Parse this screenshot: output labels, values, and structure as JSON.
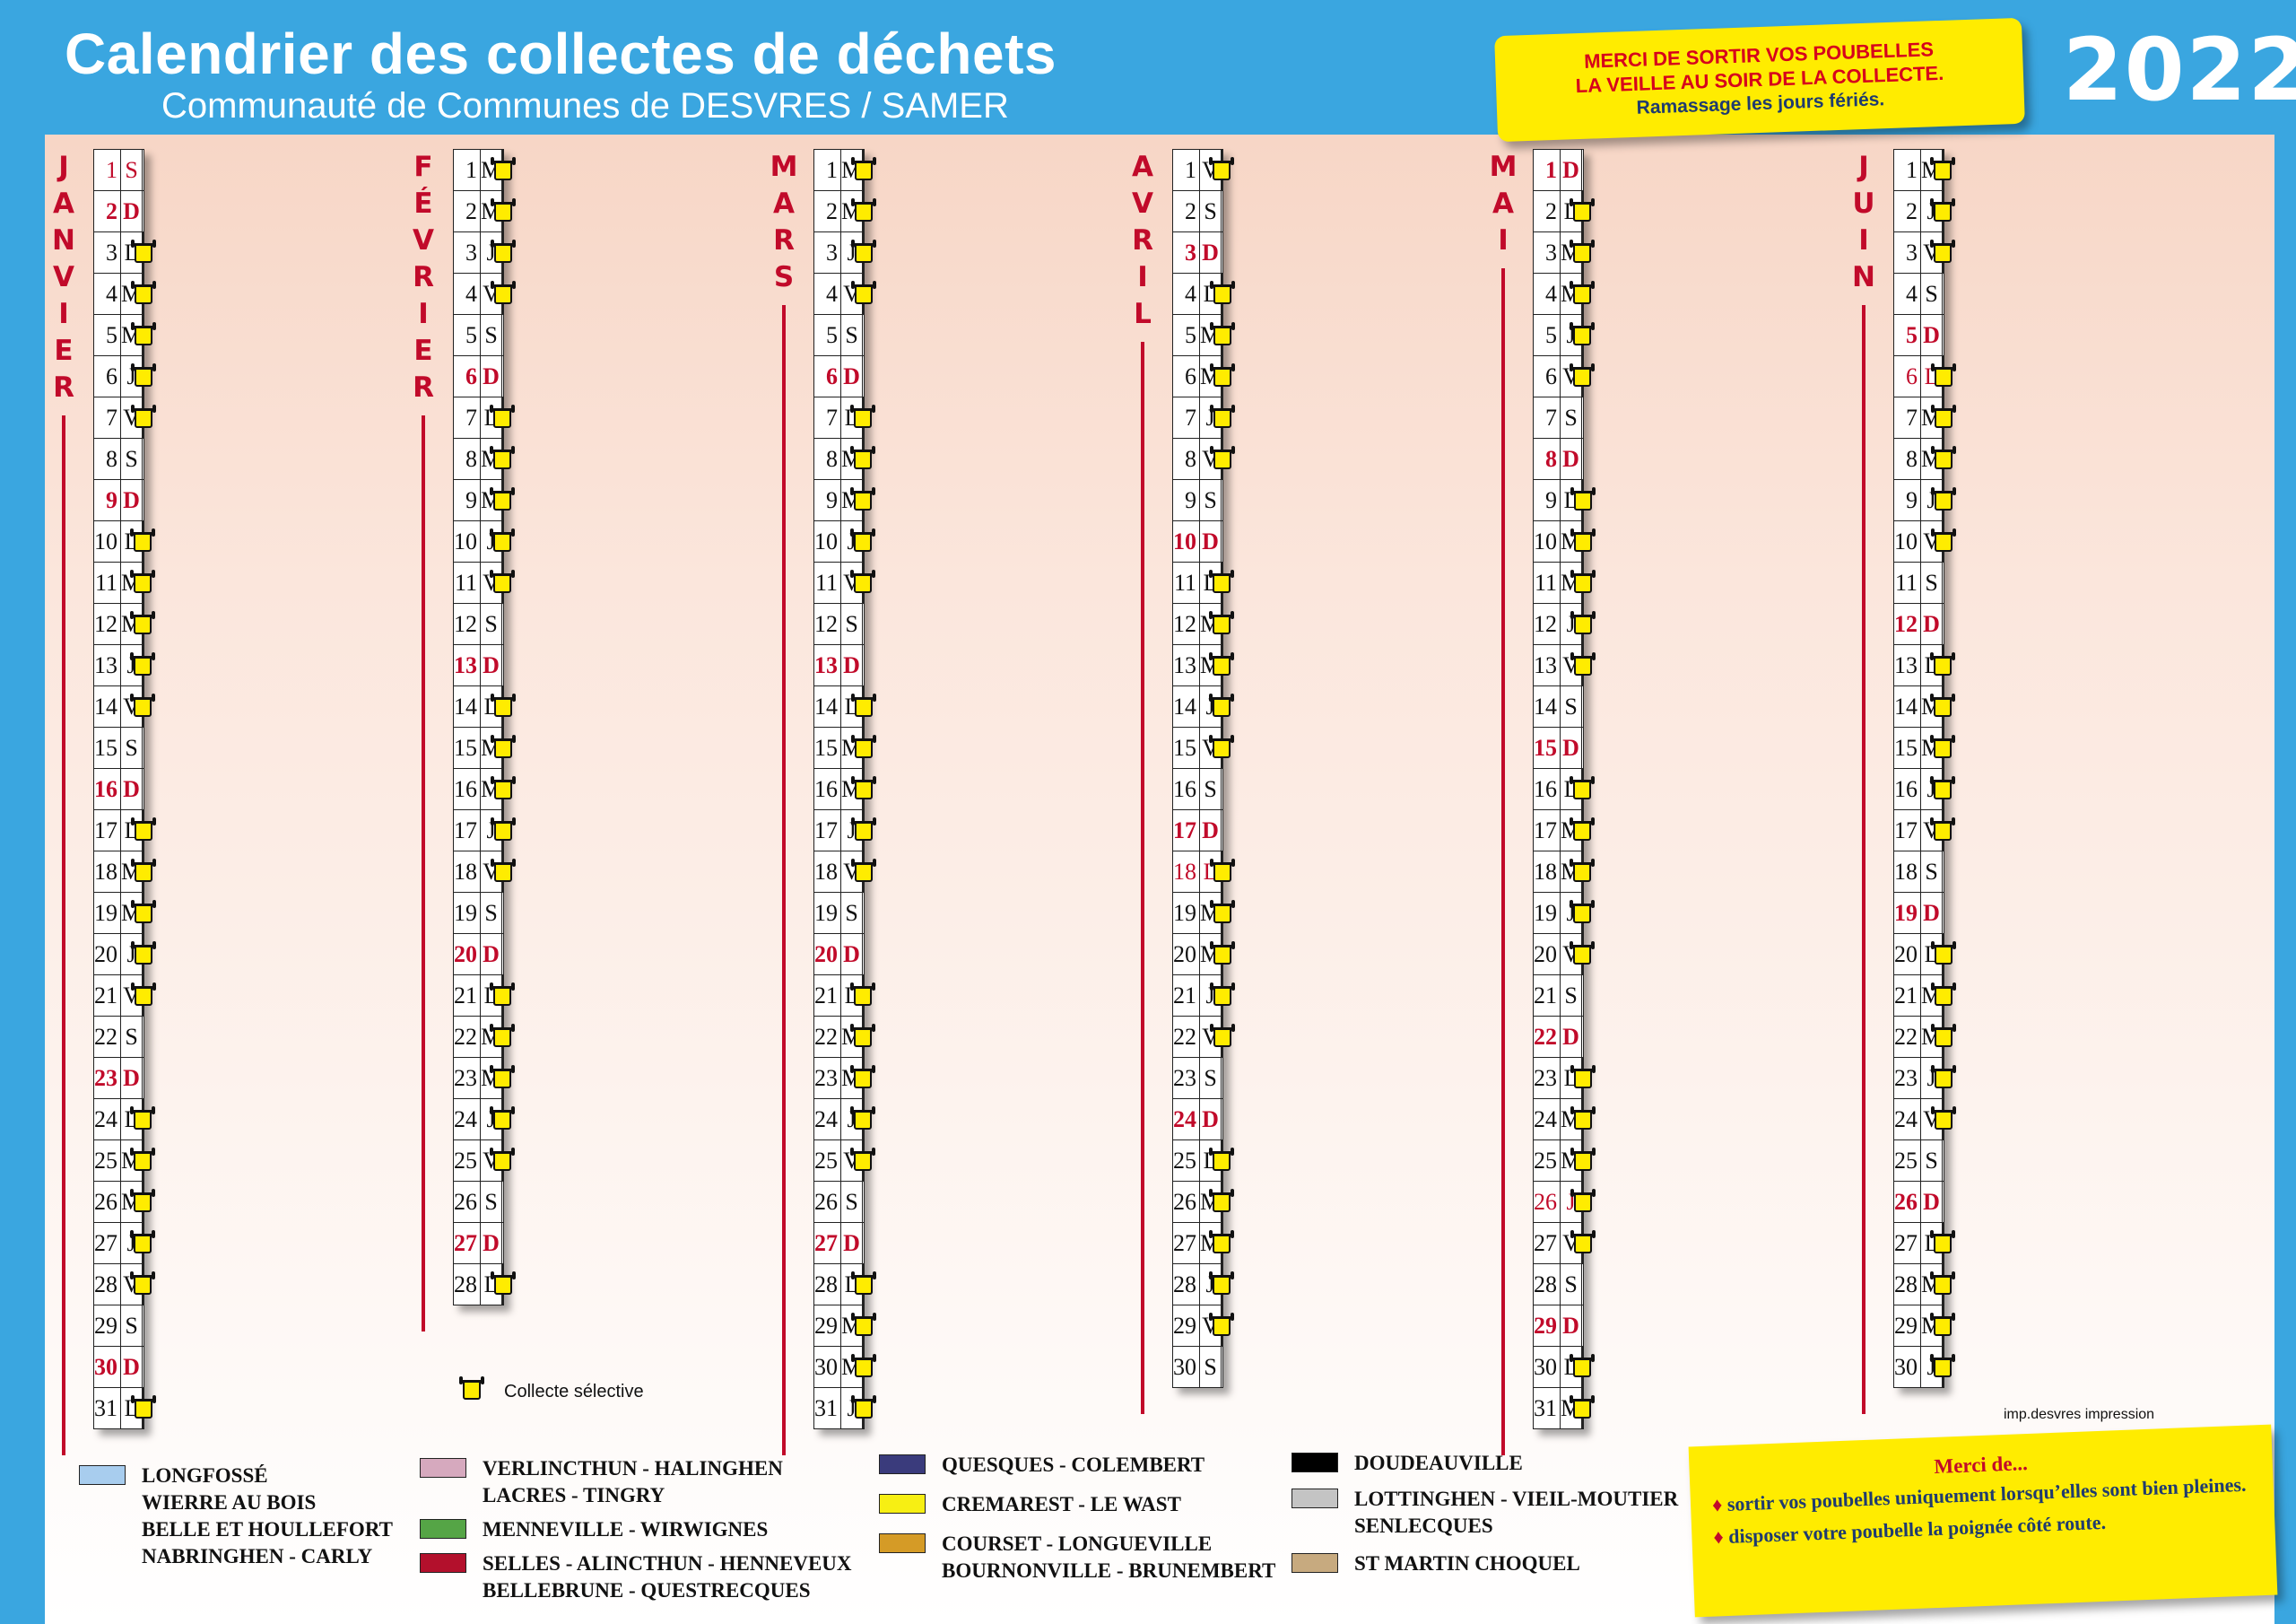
{
  "header": {
    "title": "Calendrier des collectes de déchets",
    "subtitle": "Communauté de Communes de DESVRES / SAMER",
    "year": "2022",
    "notice_line1": "MERCI DE SORTIR VOS POUBELLES",
    "notice_line2": "LA VEILLE AU SOIR DE LA COLLECTE.",
    "notice_line3": "Ramassage les jours fériés."
  },
  "colors": {
    "lightblue": "#a8cdee",
    "pink": "#d6a9be",
    "green": "#55a546",
    "red": "#b3102c",
    "navy": "#3a3b7c",
    "yellow": "#f7ef13",
    "orange": "#d59b26",
    "black": "#000000",
    "grey": "#c4c4c4",
    "tan": "#c7aa7f",
    "accent": "#c10a2a",
    "background": "#3aa6e0"
  },
  "months": [
    {
      "name": "JANVIER",
      "first_weekday": 5,
      "days": 31,
      "first_type": 0,
      "sundays": [
        2,
        9,
        16,
        23,
        30
      ],
      "holidays": [
        1
      ]
    },
    {
      "name": "FÉVRIER",
      "first_weekday": 1,
      "days": 28,
      "first_type": 1,
      "sundays": [
        6,
        13,
        20,
        27
      ],
      "holidays": []
    },
    {
      "name": "MARS",
      "first_weekday": 1,
      "days": 31,
      "first_type": 1,
      "sundays": [
        6,
        13,
        20,
        27
      ],
      "holidays": []
    },
    {
      "name": "AVRIL",
      "first_weekday": 4,
      "days": 30,
      "first_type": 0,
      "sundays": [
        3,
        10,
        17,
        24
      ],
      "holidays": [
        18
      ]
    },
    {
      "name": "MAI",
      "first_weekday": 6,
      "days": 31,
      "first_type": 1,
      "sundays": [
        1,
        8,
        15,
        22,
        29
      ],
      "holidays": [
        26
      ]
    },
    {
      "name": "JUIN",
      "first_weekday": 2,
      "days": 30,
      "first_type": 0,
      "sundays": [
        5,
        12,
        19,
        26
      ],
      "holidays": [
        6
      ]
    }
  ],
  "weekday_letters": [
    "L",
    "M",
    "M",
    "J",
    "V",
    "S",
    "D"
  ],
  "legend_bin_label": "Collecte sélective",
  "imprint": "imp.desvres impression",
  "legend": [
    {
      "color": "lightblue",
      "lines": [
        "LONGFOSSÉ",
        "WIERRE AU BOIS",
        "BELLE ET HOULLEFORT",
        "NABRINGHEN - CARLY"
      ]
    },
    {
      "color": "pink",
      "lines": [
        "VERLINCTHUN - HALINGHEN",
        "LACRES - TINGRY"
      ]
    },
    {
      "color": "green",
      "lines": [
        "MENNEVILLE - WIRWIGNES"
      ]
    },
    {
      "color": "red",
      "lines": [
        "SELLES - ALINCTHUN - HENNEVEUX",
        "BELLEBRUNE - QUESTRECQUES"
      ]
    },
    {
      "color": "navy",
      "lines": [
        "QUESQUES - COLEMBERT"
      ]
    },
    {
      "color": "yellow",
      "lines": [
        "CREMAREST - LE WAST"
      ]
    },
    {
      "color": "orange",
      "lines": [
        "COURSET - LONGUEVILLE",
        "BOURNONVILLE - BRUNEMBERT"
      ]
    },
    {
      "color": "black",
      "lines": [
        "DOUDEAUVILLE"
      ]
    },
    {
      "color": "grey",
      "lines": [
        "LOTTINGHEN - VIEIL-MOUTIER",
        "SENLECQUES"
      ]
    },
    {
      "color": "tan",
      "lines": [
        "ST MARTIN CHOQUEL"
      ]
    }
  ],
  "thanks": {
    "title": "Merci de...",
    "item1": "sortir vos poubelles uniquement lorsqu’elles sont bien pleines.",
    "item2": "disposer votre poubelle la poignée côté route."
  }
}
